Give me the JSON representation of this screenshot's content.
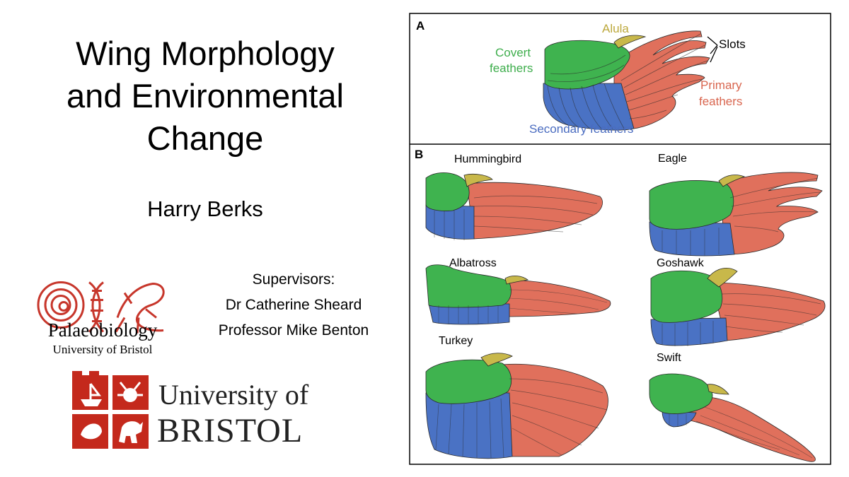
{
  "slide": {
    "title_lines": [
      "Wing Morphology",
      "and Environmental",
      "Change"
    ],
    "author": "Harry Berks",
    "supervisors": [
      "Supervisors:",
      "Dr Catherine Sheard",
      "Professor Mike Benton"
    ]
  },
  "logos": {
    "palaeo": {
      "name": "Palaeobiology",
      "sub": "University of Bristol",
      "color": "#c7362b"
    },
    "uob": {
      "line1": "University of",
      "line2": "BRISTOL",
      "color": "#c4291c"
    }
  },
  "figure": {
    "panel_a": {
      "letter": "A",
      "labels": {
        "alula": "Alula",
        "slots": "Slots",
        "covert": [
          "Covert",
          "feathers"
        ],
        "primary": [
          "Primary",
          "feathers"
        ],
        "secondary": "Secondary feathers"
      }
    },
    "panel_b": {
      "letter": "B",
      "birds": [
        "Hummingbird",
        "Eagle",
        "Albatross",
        "Goshawk",
        "Turkey",
        "Swift"
      ]
    },
    "colors": {
      "covert": "#3fb34f",
      "primary": "#e0705c",
      "secondary": "#4a72c4",
      "alula": "#c8b84a",
      "alula_label": "#bca83c",
      "covert_label": "#3fae4d",
      "primary_label": "#d9664f",
      "secondary_label": "#4a6cc0"
    }
  }
}
